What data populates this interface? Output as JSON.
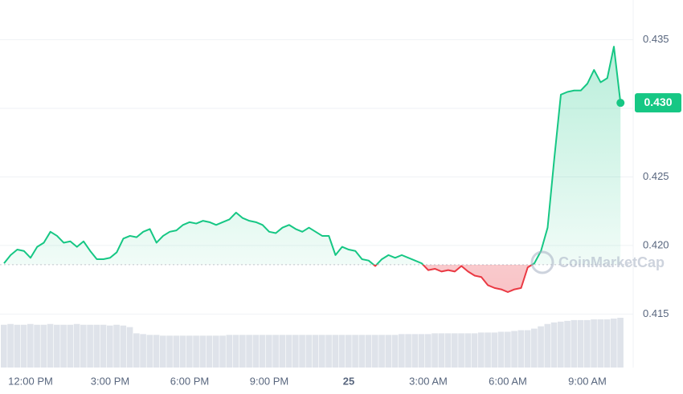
{
  "chart_data": {
    "type": "line",
    "watermark": "CoinMarketCap",
    "categories": [
      null,
      null,
      null,
      null,
      "12:00 PM",
      null,
      null,
      null,
      null,
      null,
      null,
      null,
      null,
      null,
      null,
      null,
      "3:00 PM",
      null,
      null,
      null,
      null,
      null,
      null,
      null,
      null,
      null,
      null,
      null,
      "6:00 PM",
      null,
      null,
      null,
      null,
      null,
      null,
      null,
      null,
      null,
      null,
      null,
      "9:00 PM",
      null,
      null,
      null,
      null,
      null,
      null,
      null,
      null,
      null,
      null,
      null,
      "25",
      null,
      null,
      null,
      null,
      null,
      null,
      null,
      null,
      null,
      null,
      null,
      "3:00 AM",
      null,
      null,
      null,
      null,
      null,
      null,
      null,
      null,
      null,
      null,
      null,
      "6:00 AM",
      null,
      null,
      null,
      null,
      null,
      null,
      null,
      null,
      null,
      null,
      null,
      "9:00 AM",
      null,
      null,
      null,
      null,
      null
    ],
    "series": [
      {
        "name": "Price",
        "color": "#16c784",
        "color_below": "#ea3943",
        "values": [
          0.4187,
          0.4193,
          0.4197,
          0.4196,
          0.4191,
          0.4199,
          0.4202,
          0.421,
          0.4207,
          0.4202,
          0.4203,
          0.4199,
          0.4203,
          0.4196,
          0.419,
          0.419,
          0.4191,
          0.4195,
          0.4205,
          0.4207,
          0.4206,
          0.421,
          0.4212,
          0.4202,
          0.4207,
          0.421,
          0.4211,
          0.4215,
          0.4217,
          0.4216,
          0.4218,
          0.4217,
          0.4215,
          0.4217,
          0.4219,
          0.4224,
          0.422,
          0.4218,
          0.4217,
          0.4215,
          0.421,
          0.4209,
          0.4213,
          0.4215,
          0.4212,
          0.421,
          0.4213,
          0.421,
          0.4207,
          0.4207,
          0.4193,
          0.4199,
          0.4197,
          0.4196,
          0.419,
          0.4189,
          0.4185,
          0.419,
          0.4193,
          0.4191,
          0.4193,
          0.4191,
          0.4189,
          0.4187,
          0.4182,
          0.4183,
          0.4181,
          0.4182,
          0.4181,
          0.4185,
          0.4181,
          0.4178,
          0.4177,
          0.4171,
          0.4169,
          0.4168,
          0.4166,
          0.4168,
          0.4169,
          0.4184,
          0.4187,
          0.4196,
          0.4213,
          0.4263,
          0.431,
          0.4312,
          0.4313,
          0.4313,
          0.4318,
          0.4328,
          0.4319,
          0.4322,
          0.4345,
          0.4304
        ],
        "value_labels": [
          null,
          null,
          null,
          null,
          null,
          null,
          null,
          null,
          null,
          null,
          null,
          null,
          null,
          null,
          null,
          null,
          null,
          null,
          null,
          null,
          null,
          null,
          null,
          null,
          null,
          null,
          null,
          null,
          null,
          null,
          null,
          null,
          null,
          null,
          null,
          null,
          null,
          null,
          null,
          null,
          null,
          null,
          null,
          null,
          null,
          null,
          null,
          null,
          null,
          null,
          null,
          null,
          null,
          null,
          null,
          null,
          null,
          null,
          null,
          null,
          null,
          null,
          null,
          null,
          null,
          null,
          null,
          null,
          null,
          null,
          null,
          null,
          null,
          null,
          null,
          null,
          null,
          null,
          null,
          null,
          null,
          null,
          null,
          null,
          null,
          null,
          null,
          null,
          null,
          null,
          null,
          null,
          null,
          "0.430"
        ]
      },
      {
        "name": "Volume",
        "color": "#dfe3ea",
        "values": [
          55,
          56,
          55,
          55,
          56,
          55,
          55,
          56,
          55,
          55,
          55,
          56,
          55,
          55,
          55,
          55,
          54,
          55,
          54,
          52,
          44,
          43,
          42,
          42,
          41,
          41,
          41,
          41,
          41,
          41,
          41,
          41,
          41,
          41,
          42,
          42,
          42,
          42,
          42,
          42,
          42,
          42,
          42,
          42,
          42,
          42,
          42,
          42,
          42,
          42,
          42,
          42,
          42,
          42,
          42,
          42,
          42,
          42,
          42,
          42,
          43,
          43,
          43,
          43,
          43,
          44,
          44,
          44,
          44,
          44,
          44,
          44,
          45,
          45,
          45,
          46,
          46,
          47,
          48,
          48,
          50,
          53,
          56,
          58,
          59,
          60,
          61,
          61,
          61,
          62,
          62,
          62,
          63,
          64
        ]
      }
    ],
    "baseline": 0.4186,
    "ylim": [
      0.4111,
      0.4379
    ],
    "yticks": [
      {
        "value": 0.415,
        "label": "0.415"
      },
      {
        "value": 0.42,
        "label": "0.420"
      },
      {
        "value": 0.425,
        "label": "0.425"
      },
      {
        "value": 0.43,
        "label": "0.430"
      },
      {
        "value": 0.435,
        "label": "0.435"
      }
    ],
    "grid": true
  }
}
